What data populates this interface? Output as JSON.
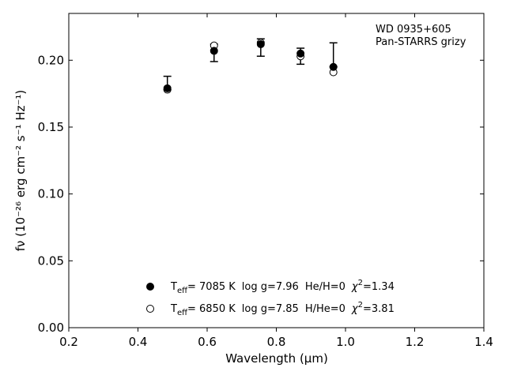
{
  "chart_data": {
    "type": "scatter",
    "title": "",
    "xlabel": "Wavelength (μm)",
    "ylabel": "fν (10⁻²⁶ erg cm⁻² s⁻¹ Hz⁻¹)",
    "xlim": [
      0.2,
      1.4
    ],
    "ylim": [
      0.0,
      0.235
    ],
    "xticks": [
      "0.2",
      "0.4",
      "0.6",
      "0.8",
      "1.0",
      "1.2",
      "1.4"
    ],
    "yticks": [
      "0.00",
      "0.05",
      "0.10",
      "0.15",
      "0.20"
    ],
    "annotation": [
      "WD 0935+605",
      "Pan-STARRS grizy"
    ],
    "observed": {
      "x": [
        0.485,
        0.62,
        0.755,
        0.87,
        0.965
      ],
      "y": [
        0.18,
        0.207,
        0.211,
        0.203,
        0.195
      ],
      "yerr_low": [
        0.178,
        0.199,
        0.203,
        0.197,
        0.195
      ],
      "yerr_high": [
        0.188,
        0.212,
        0.216,
        0.209,
        0.213
      ]
    },
    "series": [
      {
        "name": "Teff= 7085 K log g=7.96 He/H=0 χ²=1.34",
        "marker": "filled-circle",
        "x": [
          0.485,
          0.62,
          0.755,
          0.87,
          0.965
        ],
        "y": [
          0.179,
          0.207,
          0.212,
          0.205,
          0.195
        ]
      },
      {
        "name": "Teff= 6850 K log g=7.85 H/He=0 χ²=3.81",
        "marker": "open-circle",
        "x": [
          0.485,
          0.62,
          0.755,
          0.87,
          0.965
        ],
        "y": [
          0.178,
          0.211,
          0.213,
          0.203,
          0.191
        ]
      }
    ],
    "legend": [
      {
        "teff_value": "=  7085 K",
        "logg": "log g=7.96",
        "comp": "He/H=0",
        "chi_value": "=1.34"
      },
      {
        "teff_value": "=  6850 K",
        "logg": "log g=7.85",
        "comp": "H/He=0",
        "chi_value": "=3.81"
      }
    ],
    "legend_placement": "bottom-center",
    "grid": false
  }
}
